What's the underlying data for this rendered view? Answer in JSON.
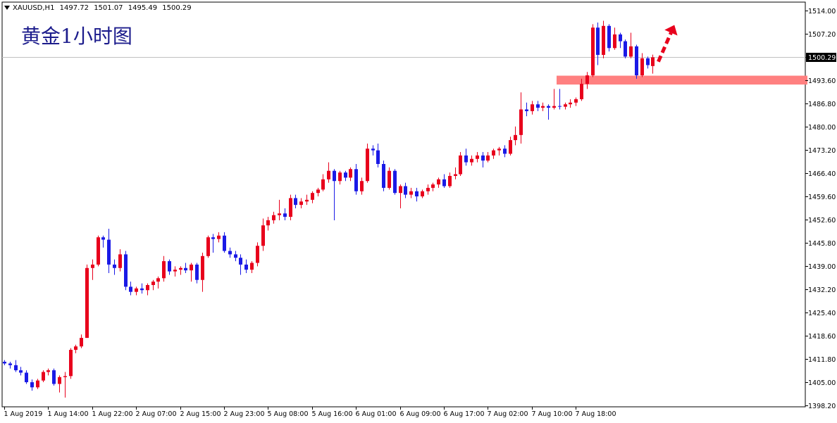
{
  "header": {
    "symbol": "XAUUSD,H1",
    "open": "1497.72",
    "high": "1501.07",
    "low": "1495.49",
    "close": "1500.29"
  },
  "title": "黄金1小时图",
  "chart_data": {
    "type": "candlestick",
    "symbol": "XAUUSD",
    "timeframe": "H1",
    "title": "黄金1小时图",
    "y_ticks": [
      1514.0,
      1507.2,
      1500.29,
      1493.6,
      1486.8,
      1480.0,
      1473.2,
      1466.4,
      1459.6,
      1452.6,
      1445.8,
      1439.0,
      1432.2,
      1425.4,
      1418.6,
      1411.8,
      1405.0,
      1398.2
    ],
    "y_tick_labels": [
      "1514.00",
      "1507.20",
      "1500.29",
      "1493.60",
      "1486.80",
      "1480.00",
      "1473.20",
      "1466.40",
      "1459.60",
      "1452.60",
      "1445.80",
      "1439.00",
      "1432.20",
      "1425.40",
      "1418.60",
      "1411.80",
      "1405.00",
      "1398.20"
    ],
    "ylim": [
      1397.0,
      1515.5
    ],
    "x_labels": [
      "1 Aug 2019",
      "1 Aug 14:00",
      "1 Aug 22:00",
      "2 Aug 07:00",
      "2 Aug 15:00",
      "2 Aug 23:00",
      "5 Aug 08:00",
      "5 Aug 16:00",
      "6 Aug 01:00",
      "6 Aug 09:00",
      "6 Aug 17:00",
      "7 Aug 02:00",
      "7 Aug 10:00",
      "7 Aug 18:00"
    ],
    "current_price": 1500.29,
    "current_price_label": "1500.29",
    "support_zone": [
      1492.3,
      1494.9
    ],
    "bull_color": "#e8001c",
    "bear_color": "#1a1ae6",
    "zone_color": "#ff8080",
    "arrow_color": "#e8001c",
    "candles": [
      {
        "o": 1411,
        "h": 1411.5,
        "l": 1410,
        "c": 1410.5
      },
      {
        "o": 1410.5,
        "h": 1411,
        "l": 1409,
        "c": 1410
      },
      {
        "o": 1410,
        "h": 1411.5,
        "l": 1408,
        "c": 1408.5
      },
      {
        "o": 1408.5,
        "h": 1409.5,
        "l": 1407,
        "c": 1407.8
      },
      {
        "o": 1407.8,
        "h": 1408.5,
        "l": 1404.5,
        "c": 1405
      },
      {
        "o": 1405,
        "h": 1405.8,
        "l": 1402.5,
        "c": 1403.5
      },
      {
        "o": 1403.5,
        "h": 1406,
        "l": 1403,
        "c": 1405.5
      },
      {
        "o": 1405.5,
        "h": 1408.5,
        "l": 1405,
        "c": 1408
      },
      {
        "o": 1408,
        "h": 1409,
        "l": 1407,
        "c": 1408.5
      },
      {
        "o": 1408.5,
        "h": 1409,
        "l": 1404,
        "c": 1404.5
      },
      {
        "o": 1404.5,
        "h": 1407,
        "l": 1402,
        "c": 1406.5
      },
      {
        "o": 1406.5,
        "h": 1408,
        "l": 1400.5,
        "c": 1406.8
      },
      {
        "o": 1406.8,
        "h": 1415,
        "l": 1406,
        "c": 1414.5
      },
      {
        "o": 1414.5,
        "h": 1416,
        "l": 1413.5,
        "c": 1415.5
      },
      {
        "o": 1415.5,
        "h": 1419,
        "l": 1415,
        "c": 1418
      },
      {
        "o": 1418,
        "h": 1439.5,
        "l": 1418,
        "c": 1438.5
      },
      {
        "o": 1438.5,
        "h": 1441,
        "l": 1435,
        "c": 1439.5
      },
      {
        "o": 1439.5,
        "h": 1448,
        "l": 1439,
        "c": 1447.5
      },
      {
        "o": 1447.5,
        "h": 1448,
        "l": 1444.5,
        "c": 1446.8
      },
      {
        "o": 1446.8,
        "h": 1450,
        "l": 1437,
        "c": 1439.5
      },
      {
        "o": 1439.5,
        "h": 1441,
        "l": 1436.5,
        "c": 1438.5
      },
      {
        "o": 1438.5,
        "h": 1444,
        "l": 1437.5,
        "c": 1442.5
      },
      {
        "o": 1442.5,
        "h": 1443.5,
        "l": 1432,
        "c": 1433
      },
      {
        "o": 1433,
        "h": 1434.5,
        "l": 1430.5,
        "c": 1431.5
      },
      {
        "o": 1431.5,
        "h": 1433,
        "l": 1430.5,
        "c": 1432.5
      },
      {
        "o": 1432.5,
        "h": 1434,
        "l": 1431,
        "c": 1432
      },
      {
        "o": 1432,
        "h": 1434,
        "l": 1430.5,
        "c": 1433.5
      },
      {
        "o": 1433.5,
        "h": 1435,
        "l": 1432,
        "c": 1434.5
      },
      {
        "o": 1434.5,
        "h": 1436,
        "l": 1432.5,
        "c": 1435.5
      },
      {
        "o": 1435.5,
        "h": 1442,
        "l": 1434.5,
        "c": 1440.5
      },
      {
        "o": 1440.5,
        "h": 1441,
        "l": 1436.5,
        "c": 1437.5
      },
      {
        "o": 1437.5,
        "h": 1439,
        "l": 1436,
        "c": 1438
      },
      {
        "o": 1438,
        "h": 1439,
        "l": 1436.5,
        "c": 1438.5
      },
      {
        "o": 1438.5,
        "h": 1440,
        "l": 1437,
        "c": 1437.8
      },
      {
        "o": 1437.8,
        "h": 1440,
        "l": 1434.5,
        "c": 1439.5
      },
      {
        "o": 1439.5,
        "h": 1440,
        "l": 1434,
        "c": 1435
      },
      {
        "o": 1435,
        "h": 1443,
        "l": 1431.5,
        "c": 1442
      },
      {
        "o": 1442,
        "h": 1448,
        "l": 1441.5,
        "c": 1447.5
      },
      {
        "o": 1447.5,
        "h": 1448.5,
        "l": 1443,
        "c": 1447
      },
      {
        "o": 1447,
        "h": 1449,
        "l": 1446,
        "c": 1448
      },
      {
        "o": 1448,
        "h": 1449,
        "l": 1443,
        "c": 1443.5
      },
      {
        "o": 1443.5,
        "h": 1444.5,
        "l": 1441.5,
        "c": 1442.5
      },
      {
        "o": 1442.5,
        "h": 1443.5,
        "l": 1440.5,
        "c": 1441.5
      },
      {
        "o": 1441.5,
        "h": 1442.5,
        "l": 1436.5,
        "c": 1439.5
      },
      {
        "o": 1439.5,
        "h": 1441,
        "l": 1437,
        "c": 1438
      },
      {
        "o": 1438,
        "h": 1440.5,
        "l": 1437,
        "c": 1440
      },
      {
        "o": 1440,
        "h": 1446,
        "l": 1439,
        "c": 1445
      },
      {
        "o": 1445,
        "h": 1453,
        "l": 1443.5,
        "c": 1451
      },
      {
        "o": 1451,
        "h": 1453.5,
        "l": 1449.5,
        "c": 1452.5
      },
      {
        "o": 1452.5,
        "h": 1455,
        "l": 1451.5,
        "c": 1454
      },
      {
        "o": 1454,
        "h": 1458.5,
        "l": 1452.5,
        "c": 1454.5
      },
      {
        "o": 1454.5,
        "h": 1456,
        "l": 1452.5,
        "c": 1453.5
      },
      {
        "o": 1453.5,
        "h": 1460,
        "l": 1452.5,
        "c": 1459
      },
      {
        "o": 1459,
        "h": 1460,
        "l": 1456,
        "c": 1457
      },
      {
        "o": 1457,
        "h": 1459,
        "l": 1456,
        "c": 1458
      },
      {
        "o": 1458,
        "h": 1460,
        "l": 1457,
        "c": 1458.5
      },
      {
        "o": 1458.5,
        "h": 1461,
        "l": 1457.5,
        "c": 1460.5
      },
      {
        "o": 1460.5,
        "h": 1462,
        "l": 1459.5,
        "c": 1461.5
      },
      {
        "o": 1461.5,
        "h": 1466,
        "l": 1461,
        "c": 1464.5
      },
      {
        "o": 1464.5,
        "h": 1469.5,
        "l": 1463.5,
        "c": 1467
      },
      {
        "o": 1467,
        "h": 1467.5,
        "l": 1452.5,
        "c": 1464
      },
      {
        "o": 1464,
        "h": 1467,
        "l": 1463,
        "c": 1466.5
      },
      {
        "o": 1466.5,
        "h": 1467,
        "l": 1464,
        "c": 1465
      },
      {
        "o": 1465,
        "h": 1468,
        "l": 1464,
        "c": 1467.5
      },
      {
        "o": 1467.5,
        "h": 1469,
        "l": 1460,
        "c": 1461
      },
      {
        "o": 1461,
        "h": 1465,
        "l": 1460,
        "c": 1464
      },
      {
        "o": 1464,
        "h": 1475,
        "l": 1463.5,
        "c": 1473.5
      },
      {
        "o": 1473.5,
        "h": 1474.5,
        "l": 1471.5,
        "c": 1473
      },
      {
        "o": 1473,
        "h": 1475,
        "l": 1468,
        "c": 1469
      },
      {
        "o": 1469,
        "h": 1470,
        "l": 1461,
        "c": 1462
      },
      {
        "o": 1462,
        "h": 1468,
        "l": 1461.5,
        "c": 1467
      },
      {
        "o": 1467,
        "h": 1467.5,
        "l": 1460,
        "c": 1460.5
      },
      {
        "o": 1460.5,
        "h": 1463,
        "l": 1456,
        "c": 1462.5
      },
      {
        "o": 1462.5,
        "h": 1463.5,
        "l": 1459,
        "c": 1460
      },
      {
        "o": 1460,
        "h": 1462,
        "l": 1459,
        "c": 1461
      },
      {
        "o": 1461,
        "h": 1462,
        "l": 1458,
        "c": 1459.5
      },
      {
        "o": 1459.5,
        "h": 1461.5,
        "l": 1459,
        "c": 1461
      },
      {
        "o": 1461,
        "h": 1463,
        "l": 1460,
        "c": 1462
      },
      {
        "o": 1462,
        "h": 1463.5,
        "l": 1461,
        "c": 1463
      },
      {
        "o": 1463,
        "h": 1465,
        "l": 1462,
        "c": 1464.5
      },
      {
        "o": 1464.5,
        "h": 1466,
        "l": 1462,
        "c": 1462.5
      },
      {
        "o": 1462.5,
        "h": 1466.5,
        "l": 1462,
        "c": 1465.5
      },
      {
        "o": 1465.5,
        "h": 1468,
        "l": 1464.5,
        "c": 1466
      },
      {
        "o": 1466,
        "h": 1472.5,
        "l": 1465.5,
        "c": 1471.5
      },
      {
        "o": 1471.5,
        "h": 1473.5,
        "l": 1468.5,
        "c": 1469.5
      },
      {
        "o": 1469.5,
        "h": 1471.5,
        "l": 1468.5,
        "c": 1470.5
      },
      {
        "o": 1470.5,
        "h": 1472.5,
        "l": 1469.5,
        "c": 1471.5
      },
      {
        "o": 1471.5,
        "h": 1472.5,
        "l": 1468,
        "c": 1470
      },
      {
        "o": 1470,
        "h": 1472.5,
        "l": 1469.5,
        "c": 1471.5
      },
      {
        "o": 1471.5,
        "h": 1473.5,
        "l": 1470.5,
        "c": 1473
      },
      {
        "o": 1473,
        "h": 1474,
        "l": 1471.5,
        "c": 1473.5
      },
      {
        "o": 1473.5,
        "h": 1474.5,
        "l": 1471,
        "c": 1472
      },
      {
        "o": 1472,
        "h": 1477,
        "l": 1471.5,
        "c": 1476
      },
      {
        "o": 1476,
        "h": 1480,
        "l": 1474.5,
        "c": 1477.5
      },
      {
        "o": 1477.5,
        "h": 1490,
        "l": 1475,
        "c": 1485
      },
      {
        "o": 1485,
        "h": 1487,
        "l": 1483,
        "c": 1484.5
      },
      {
        "o": 1484.5,
        "h": 1487.5,
        "l": 1483.5,
        "c": 1486.5
      },
      {
        "o": 1486.5,
        "h": 1487.5,
        "l": 1484.5,
        "c": 1485.5
      },
      {
        "o": 1485.5,
        "h": 1487,
        "l": 1484.5,
        "c": 1486
      },
      {
        "o": 1486,
        "h": 1486.5,
        "l": 1482,
        "c": 1485.5
      },
      {
        "o": 1485.5,
        "h": 1491,
        "l": 1485,
        "c": 1486
      },
      {
        "o": 1486,
        "h": 1491,
        "l": 1485,
        "c": 1485.8
      },
      {
        "o": 1485.8,
        "h": 1487,
        "l": 1485,
        "c": 1486.5
      },
      {
        "o": 1486.5,
        "h": 1488,
        "l": 1485.5,
        "c": 1487
      },
      {
        "o": 1487,
        "h": 1488.5,
        "l": 1486,
        "c": 1488
      },
      {
        "o": 1488,
        "h": 1494,
        "l": 1487.5,
        "c": 1492.5
      },
      {
        "o": 1492.5,
        "h": 1496,
        "l": 1491,
        "c": 1495
      },
      {
        "o": 1495,
        "h": 1510,
        "l": 1494.5,
        "c": 1509
      },
      {
        "o": 1509,
        "h": 1510.5,
        "l": 1498,
        "c": 1501
      },
      {
        "o": 1501,
        "h": 1511,
        "l": 1500,
        "c": 1509.5
      },
      {
        "o": 1509.5,
        "h": 1510,
        "l": 1502,
        "c": 1503
      },
      {
        "o": 1503,
        "h": 1509,
        "l": 1502.5,
        "c": 1507
      },
      {
        "o": 1507,
        "h": 1507.5,
        "l": 1503,
        "c": 1505
      },
      {
        "o": 1505,
        "h": 1505.5,
        "l": 1500,
        "c": 1500.5
      },
      {
        "o": 1500.5,
        "h": 1507.5,
        "l": 1500,
        "c": 1503.5
      },
      {
        "o": 1503.5,
        "h": 1504,
        "l": 1494,
        "c": 1495
      },
      {
        "o": 1495,
        "h": 1501.5,
        "l": 1494.5,
        "c": 1500
      },
      {
        "o": 1500,
        "h": 1500.5,
        "l": 1497,
        "c": 1498
      },
      {
        "o": 1497.72,
        "h": 1501.07,
        "l": 1495.49,
        "c": 1500.29
      }
    ]
  }
}
